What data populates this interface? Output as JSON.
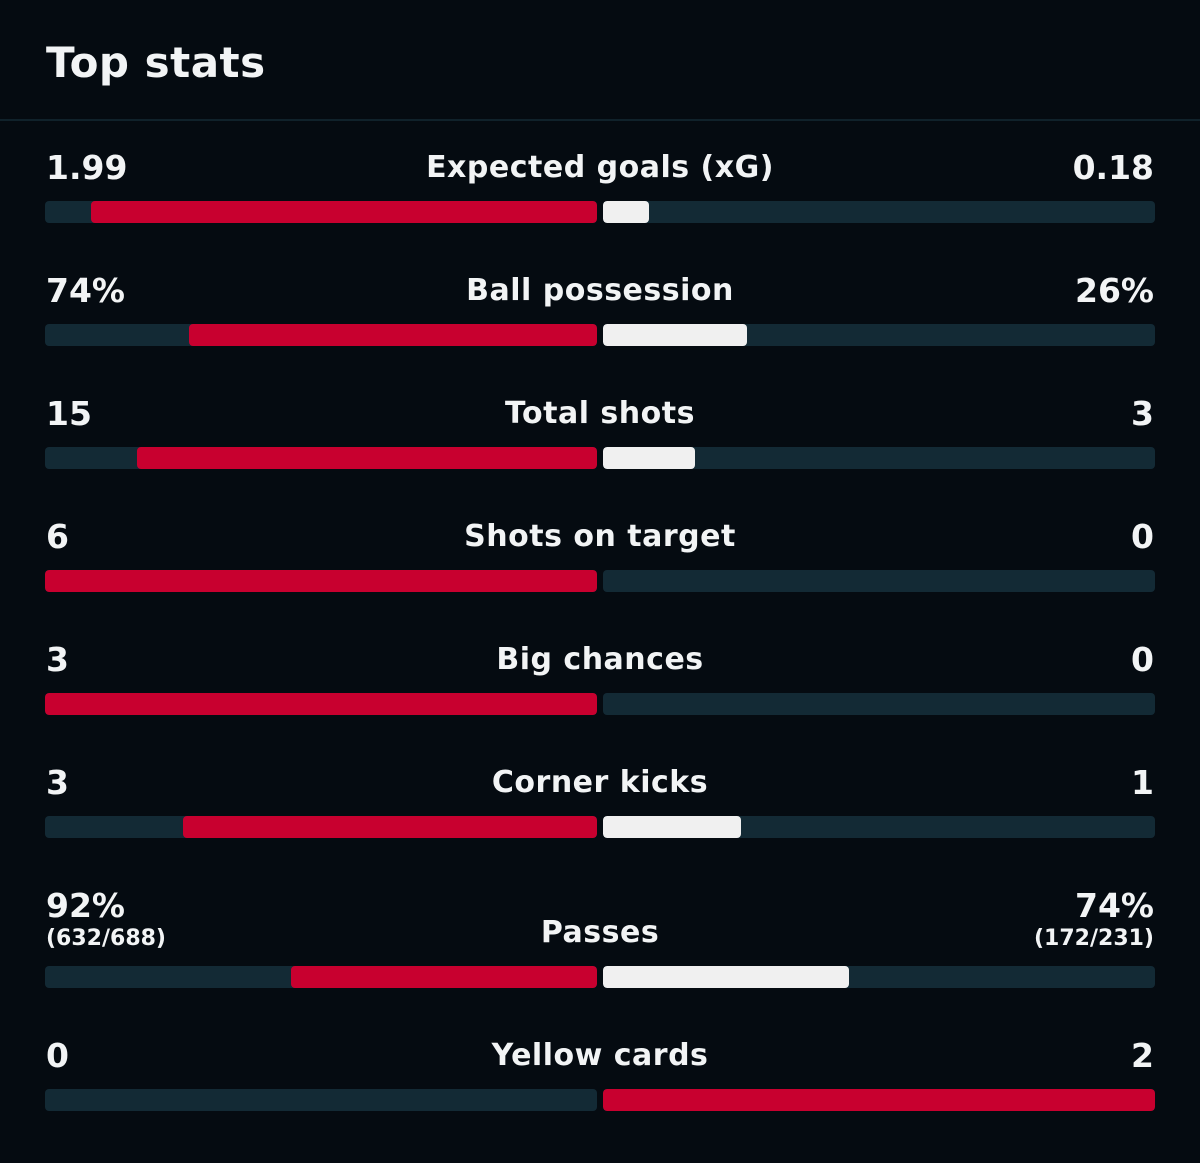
{
  "header": {
    "title": "Top stats"
  },
  "colors": {
    "background": "#050b11",
    "track": "#132a35",
    "home": "#c8002f",
    "away": "#f0f0f0",
    "away_highlight": "#c8002f"
  },
  "stats": [
    {
      "label": "Expected goals (xG)",
      "home": "1.99",
      "away": "0.18",
      "home_share": 0.917,
      "away_share": 0.083,
      "away_color": "white"
    },
    {
      "label": "Ball possession",
      "home": "74%",
      "away": "26%",
      "home_share": 0.74,
      "away_share": 0.26,
      "away_color": "white"
    },
    {
      "label": "Total shots",
      "home": "15",
      "away": "3",
      "home_share": 0.833,
      "away_share": 0.167,
      "away_color": "white"
    },
    {
      "label": "Shots on target",
      "home": "6",
      "away": "0",
      "home_share": 1.0,
      "away_share": 0.0,
      "away_color": "white"
    },
    {
      "label": "Big chances",
      "home": "3",
      "away": "0",
      "home_share": 1.0,
      "away_share": 0.0,
      "away_color": "white"
    },
    {
      "label": "Corner kicks",
      "home": "3",
      "away": "1",
      "home_share": 0.75,
      "away_share": 0.25,
      "away_color": "white"
    },
    {
      "label": "Passes",
      "home": "92%",
      "away": "74%",
      "home_sub": "(632/688)",
      "away_sub": "(172/231)",
      "home_share": 0.555,
      "away_share": 0.445,
      "away_color": "white"
    },
    {
      "label": "Yellow cards",
      "home": "0",
      "away": "2",
      "home_share": 0.0,
      "away_share": 1.0,
      "away_color": "red"
    }
  ]
}
